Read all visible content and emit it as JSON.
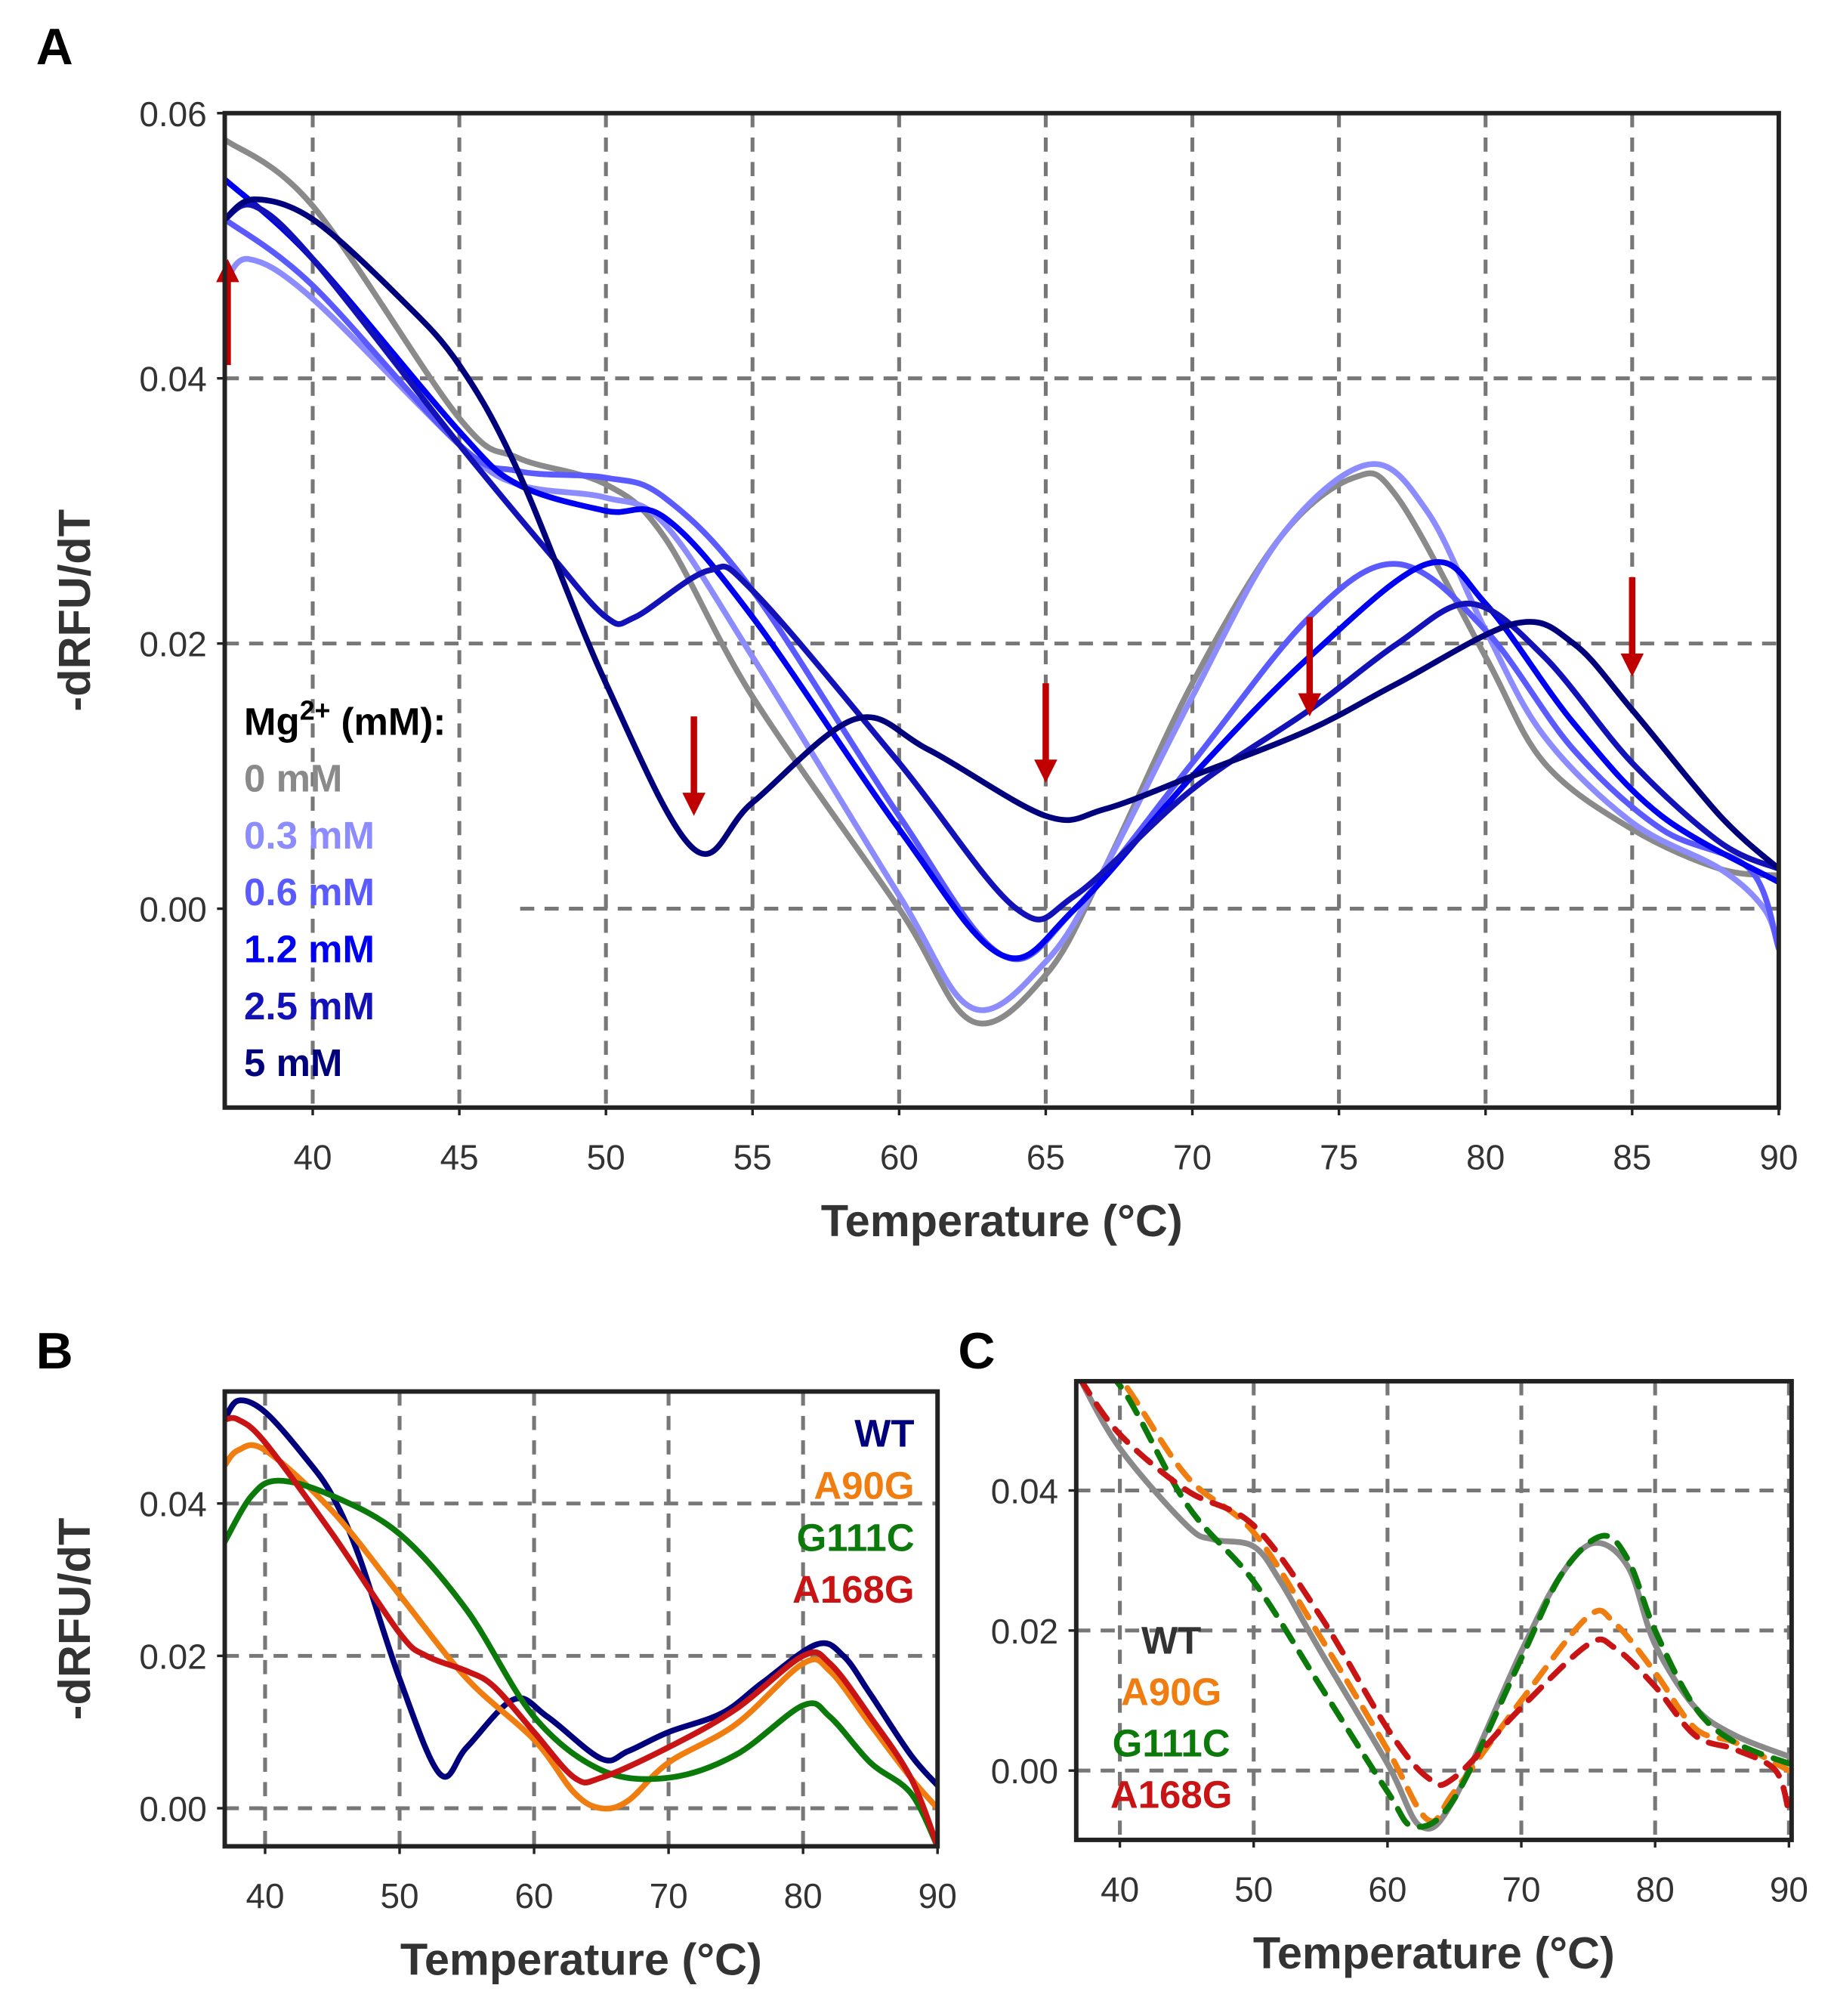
{
  "chart_data": [
    {
      "panel": "A",
      "type": "line",
      "xlabel": "Temperature (°C)",
      "ylabel": "-dRFU/dT",
      "xlim": [
        37,
        90
      ],
      "ylim": [
        -0.015,
        0.06
      ],
      "xticks": [
        "40",
        "45",
        "50",
        "55",
        "60",
        "65",
        "70",
        "75",
        "80",
        "85",
        "90"
      ],
      "yticks": [
        "0.00",
        "0.02",
        "0.04",
        "0.06"
      ],
      "grid": true,
      "legend": {
        "placement": "left-lower",
        "title_main": "Mg",
        "title_sup": "2+",
        "title_rest": " (mM):",
        "title_color": "#000000"
      },
      "series": [
        {
          "name": "0 mM",
          "color": "#8a8a8a",
          "x": [
            37,
            40,
            45,
            47,
            50,
            52,
            55,
            60,
            62.5,
            65,
            67,
            70,
            73,
            75.5,
            77,
            80,
            82,
            85,
            88,
            90
          ],
          "y": [
            0.058,
            0.053,
            0.037,
            0.034,
            0.032,
            0.028,
            0.016,
            0.0,
            -0.0085,
            -0.005,
            0.003,
            0.017,
            0.028,
            0.0325,
            0.031,
            0.019,
            0.011,
            0.006,
            0.003,
            0.0025
          ]
        },
        {
          "name": "0.3 mM",
          "color": "#8c8cff",
          "x": [
            37,
            37.8,
            40,
            45,
            47,
            50,
            52,
            55,
            60,
            62.5,
            65,
            67,
            70,
            73,
            76,
            78,
            80,
            82,
            85,
            88,
            89.5,
            90
          ],
          "y": [
            0.047,
            0.049,
            0.046,
            0.035,
            0.032,
            0.031,
            0.029,
            0.019,
            0.001,
            -0.0075,
            -0.004,
            0.003,
            0.016,
            0.028,
            0.0335,
            0.03,
            0.021,
            0.013,
            0.0065,
            0.003,
            0.0,
            -0.003
          ]
        },
        {
          "name": "0.6 mM",
          "color": "#5a5aff",
          "x": [
            37,
            40,
            45,
            47,
            50,
            52,
            55,
            60,
            63.5,
            66,
            70,
            74,
            77,
            80,
            83,
            86,
            89,
            90
          ],
          "y": [
            0.052,
            0.047,
            0.035,
            0.033,
            0.0325,
            0.031,
            0.024,
            0.007,
            -0.0035,
            0.0,
            0.011,
            0.022,
            0.026,
            0.021,
            0.012,
            0.006,
            0.003,
            -0.003
          ]
        },
        {
          "name": "1.2 mM",
          "color": "#0000f0",
          "x": [
            37,
            40,
            45,
            47,
            50,
            52,
            55,
            60,
            63.5,
            66,
            70,
            74,
            78,
            80,
            83,
            86,
            90
          ],
          "y": [
            0.055,
            0.049,
            0.036,
            0.032,
            0.03,
            0.0295,
            0.022,
            0.006,
            -0.0035,
            0.0,
            0.01,
            0.019,
            0.026,
            0.023,
            0.014,
            0.007,
            0.002
          ]
        },
        {
          "name": "2.5 mM",
          "color": "#1212b8",
          "x": [
            37,
            38,
            40,
            45,
            48,
            50,
            51,
            53.5,
            55,
            60,
            64,
            66,
            70,
            74,
            77,
            79.5,
            82,
            85,
            88,
            90
          ],
          "y": [
            0.052,
            0.053,
            0.049,
            0.035,
            0.027,
            0.022,
            0.022,
            0.0255,
            0.024,
            0.011,
            0.0,
            0.001,
            0.009,
            0.015,
            0.02,
            0.023,
            0.019,
            0.011,
            0.005,
            0.003
          ]
        },
        {
          "name": "5 mM",
          "color": "#00007d",
          "x": [
            37,
            38,
            40,
            43,
            45,
            47,
            50,
            53,
            55,
            58.5,
            61,
            65,
            67,
            70,
            74,
            77,
            81,
            83,
            85,
            88,
            90
          ],
          "y": [
            0.052,
            0.0535,
            0.052,
            0.046,
            0.041,
            0.033,
            0.017,
            0.0045,
            0.008,
            0.0143,
            0.012,
            0.007,
            0.0075,
            0.01,
            0.0135,
            0.017,
            0.0215,
            0.02,
            0.015,
            0.007,
            0.003
          ]
        }
      ],
      "annotations": [
        {
          "type": "arrow-up",
          "x": 37.1,
          "y_from": 0.041,
          "y_to": 0.049,
          "color": "#c00000"
        },
        {
          "type": "arrow-down",
          "x": 53,
          "y_from": 0.0145,
          "y_to": 0.007,
          "color": "#c00000"
        },
        {
          "type": "arrow-down",
          "x": 65,
          "y_from": 0.017,
          "y_to": 0.0095,
          "color": "#c00000"
        },
        {
          "type": "arrow-down",
          "x": 74,
          "y_from": 0.022,
          "y_to": 0.0145,
          "color": "#c00000"
        },
        {
          "type": "arrow-down",
          "x": 85,
          "y_from": 0.025,
          "y_to": 0.0175,
          "color": "#c00000"
        }
      ]
    },
    {
      "panel": "B",
      "type": "line",
      "xlabel": "Temperature (°C)",
      "ylabel": "-dRFU/dT",
      "xlim": [
        37,
        90
      ],
      "ylim": [
        -0.005,
        0.0547
      ],
      "xticks": [
        "40",
        "50",
        "60",
        "70",
        "80",
        "90"
      ],
      "yticks": [
        "0.00",
        "0.02",
        "0.04"
      ],
      "grid": true,
      "legend": {
        "placement": "top-right"
      },
      "series": [
        {
          "name": "WT",
          "color": "#00007d",
          "dashed": false,
          "x": [
            37,
            38,
            40,
            43,
            45,
            47,
            50,
            53,
            55,
            58.5,
            61,
            65,
            67,
            70,
            74,
            77,
            81,
            83,
            85,
            88,
            90
          ],
          "y": [
            0.051,
            0.0535,
            0.052,
            0.046,
            0.041,
            0.033,
            0.017,
            0.0045,
            0.008,
            0.0143,
            0.012,
            0.0065,
            0.0075,
            0.01,
            0.0125,
            0.0165,
            0.0215,
            0.02,
            0.015,
            0.007,
            0.003
          ]
        },
        {
          "name": "A90G",
          "color": "#f07d10",
          "dashed": false,
          "x": [
            37,
            38,
            40,
            45,
            50,
            55,
            60,
            63,
            65,
            67,
            70,
            75,
            80,
            82,
            85,
            88,
            90
          ],
          "y": [
            0.045,
            0.047,
            0.047,
            0.039,
            0.028,
            0.017,
            0.009,
            0.002,
            0.0,
            0.001,
            0.006,
            0.011,
            0.019,
            0.018,
            0.011,
            0.004,
            0.0
          ]
        },
        {
          "name": "G111C",
          "color": "#0b7a0b",
          "dashed": false,
          "x": [
            37,
            39,
            41,
            45,
            50,
            55,
            60,
            65,
            70,
            75,
            80,
            82,
            85,
            88,
            90
          ],
          "y": [
            0.035,
            0.041,
            0.043,
            0.041,
            0.036,
            0.026,
            0.012,
            0.005,
            0.004,
            0.007,
            0.0135,
            0.012,
            0.006,
            0.002,
            -0.005
          ]
        },
        {
          "name": "A168G",
          "color": "#c81414",
          "dashed": false,
          "x": [
            37,
            38,
            40,
            45,
            50,
            52,
            55,
            57,
            60,
            63,
            65,
            70,
            75,
            80,
            82,
            85,
            88,
            90
          ],
          "y": [
            0.051,
            0.051,
            0.048,
            0.036,
            0.023,
            0.02,
            0.018,
            0.016,
            0.01,
            0.004,
            0.004,
            0.008,
            0.013,
            0.02,
            0.019,
            0.012,
            0.004,
            -0.005
          ]
        }
      ]
    },
    {
      "panel": "C",
      "type": "line",
      "xlabel": "Temperature (°C)",
      "ylabel": "",
      "xlim": [
        36.74,
        90.2
      ],
      "ylim": [
        -0.0099,
        0.0556
      ],
      "xticks": [
        "40",
        "50",
        "60",
        "70",
        "80",
        "90"
      ],
      "yticks": [
        "0.00",
        "0.02",
        "0.04"
      ],
      "grid": true,
      "legend": {
        "placement": "left-middle"
      },
      "series": [
        {
          "name": "WT",
          "color": "#8a8a8a",
          "legend_color": "#333333",
          "dashed": false,
          "x": [
            37,
            40,
            45,
            47,
            50,
            52,
            55,
            60,
            62.5,
            65,
            70,
            73,
            75.5,
            78,
            80,
            83,
            86,
            90
          ],
          "y": [
            0.056,
            0.046,
            0.035,
            0.033,
            0.032,
            0.027,
            0.017,
            0.001,
            -0.008,
            -0.004,
            0.017,
            0.028,
            0.0325,
            0.029,
            0.018,
            0.009,
            0.005,
            0.002
          ]
        },
        {
          "name": "A90G",
          "color": "#f07d10",
          "dashed": true,
          "x": [
            37,
            40,
            45,
            50,
            55,
            60,
            63,
            65,
            70,
            75,
            77,
            80,
            83,
            86,
            90
          ],
          "y": [
            0.06,
            0.056,
            0.042,
            0.034,
            0.019,
            0.003,
            -0.007,
            -0.003,
            0.01,
            0.022,
            0.021,
            0.014,
            0.006,
            0.004,
            0.0
          ]
        },
        {
          "name": "G111C",
          "color": "#0b7a0b",
          "dashed": true,
          "x": [
            37,
            40,
            45,
            50,
            55,
            60,
            62,
            65,
            70,
            73,
            76,
            78,
            80,
            83,
            86,
            90
          ],
          "y": [
            0.058,
            0.055,
            0.038,
            0.027,
            0.012,
            -0.003,
            -0.008,
            -0.004,
            0.016,
            0.028,
            0.0335,
            0.03,
            0.02,
            0.009,
            0.004,
            0.001
          ]
        },
        {
          "name": "A168G",
          "color": "#c81414",
          "dashed": true,
          "x": [
            37,
            40,
            45,
            50,
            55,
            60,
            63,
            65,
            70,
            75,
            77,
            80,
            83,
            86,
            89,
            90
          ],
          "y": [
            0.056,
            0.048,
            0.04,
            0.035,
            0.022,
            0.006,
            -0.001,
            -0.001,
            0.009,
            0.018,
            0.0175,
            0.012,
            0.005,
            0.003,
            0.0,
            -0.006
          ]
        }
      ]
    }
  ]
}
